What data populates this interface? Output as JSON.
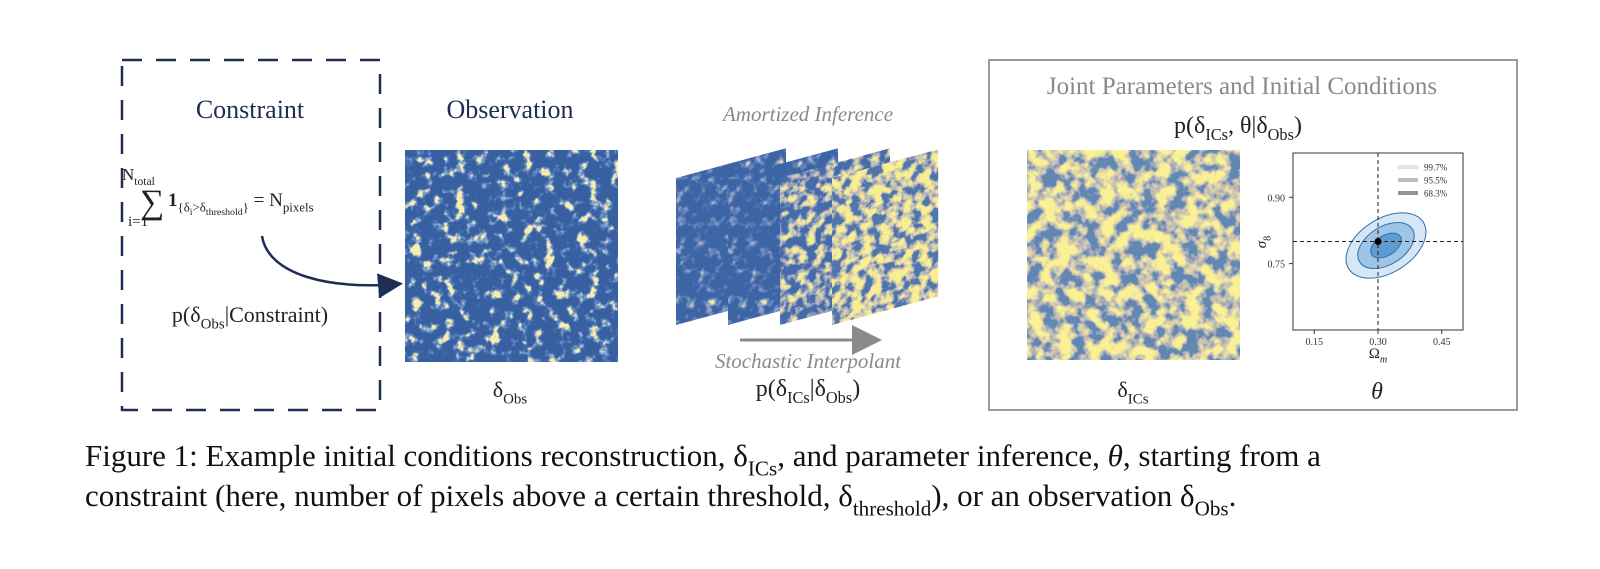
{
  "constraint": {
    "title": "Constraint",
    "sum": {
      "upper": [
        {
          "t": "N"
        },
        {
          "t": "total",
          "lvl": 1
        }
      ],
      "symbol": "∑",
      "lower": [
        {
          "t": "i=1"
        }
      ],
      "body": [
        {
          "t": "1"
        },
        {
          "t": "{δ",
          "lvl": 1
        },
        {
          "t": "i",
          "lvl": 2
        },
        {
          "t": ">δ",
          "lvl": 1
        },
        {
          "t": "threshold",
          "lvl": 2
        },
        {
          "t": "}",
          "lvl": 1
        },
        {
          "t": " = N"
        },
        {
          "t": "pixels",
          "lvl": 1
        }
      ]
    },
    "likelihood": [
      {
        "t": "p(δ"
      },
      {
        "t": "Obs",
        "lvl": 1
      },
      {
        "t": "|Constraint)"
      }
    ]
  },
  "observation": {
    "title": "Observation",
    "label": [
      {
        "t": "δ"
      },
      {
        "t": "Obs",
        "lvl": 1
      }
    ]
  },
  "inference": {
    "title": "Amortized Inference",
    "method": "Stochastic Interpolant",
    "posterior": [
      {
        "t": "p(δ"
      },
      {
        "t": "ICs",
        "lvl": 1
      },
      {
        "t": "|δ"
      },
      {
        "t": "Obs",
        "lvl": 1
      },
      {
        "t": ")"
      }
    ]
  },
  "joint": {
    "title": "Joint Parameters and Initial Conditions",
    "posterior": [
      {
        "t": "p(δ"
      },
      {
        "t": "ICs",
        "lvl": 1
      },
      {
        "t": ", θ|δ"
      },
      {
        "t": "Obs",
        "lvl": 1
      },
      {
        "t": ")"
      }
    ],
    "field_label": [
      {
        "t": "δ"
      },
      {
        "t": "ICs",
        "lvl": 1
      }
    ],
    "param_label": "θ",
    "plot": {
      "xlim": [
        0.1,
        0.5
      ],
      "ylim": [
        0.6,
        1.0
      ],
      "xticks": [
        {
          "value": 0.15,
          "label": "0.15"
        },
        {
          "value": 0.3,
          "label": "0.30"
        },
        {
          "value": 0.45,
          "label": "0.45"
        }
      ],
      "yticks": [
        {
          "value": 0.75,
          "label": "0.75"
        },
        {
          "value": 0.9,
          "label": "0.90"
        }
      ],
      "xlabel": [
        {
          "t": "Ω"
        },
        {
          "t": "m",
          "lvl": 1,
          "it": true
        }
      ],
      "ylabel": [
        {
          "t": "σ",
          "it": true
        },
        {
          "t": "8",
          "lvl": 1
        }
      ],
      "truth": {
        "x": 0.3,
        "y": 0.8
      },
      "legend": [
        {
          "name": "99.7%",
          "color": "#e3e3e3"
        },
        {
          "name": "95.5%",
          "color": "#bdbdbd"
        },
        {
          "name": "68.3%",
          "color": "#969696"
        }
      ]
    }
  },
  "caption": {
    "lines": [
      [
        {
          "t": "Figure 1: Example initial conditions reconstruction, δ"
        },
        {
          "t": "ICs",
          "lvl": 1
        },
        {
          "t": ", and parameter inference, "
        },
        {
          "t": "θ",
          "it": true
        },
        {
          "t": ", starting from a"
        }
      ],
      [
        {
          "t": "constraint (here, number of pixels above a certain threshold, δ"
        },
        {
          "t": "threshold",
          "lvl": 1
        },
        {
          "t": "), or an observation δ"
        },
        {
          "t": "Obs",
          "lvl": 1
        },
        {
          "t": "."
        }
      ]
    ]
  }
}
